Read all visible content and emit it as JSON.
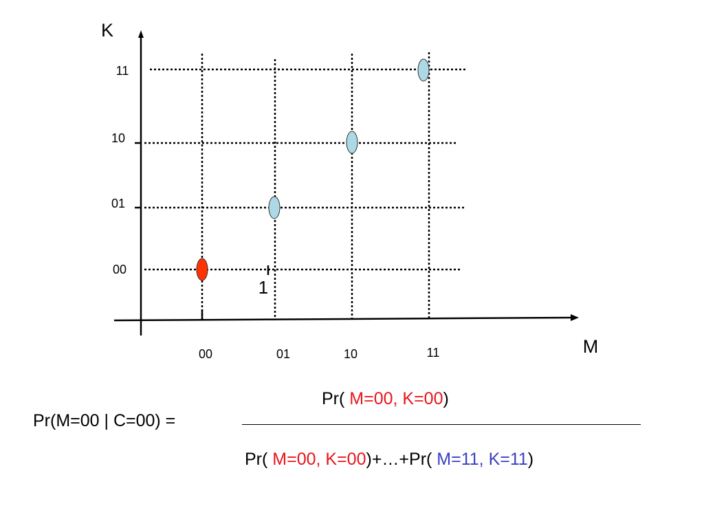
{
  "diagram": {
    "y_axis_label": "K",
    "x_axis_label": "M",
    "y_ticks": [
      "00",
      "01",
      "10",
      "11"
    ],
    "x_ticks": [
      "00",
      "01",
      "10",
      "11"
    ],
    "annotation": "1",
    "points": [
      {
        "m": "00",
        "k": "00",
        "color": "#ff3300"
      },
      {
        "m": "01",
        "k": "01",
        "color": "#add8e6"
      },
      {
        "m": "10",
        "k": "10",
        "color": "#add8e6"
      },
      {
        "m": "11",
        "k": "11",
        "color": "#add8e6"
      }
    ]
  },
  "formula": {
    "lhs": "Pr(M=00 | C=00) =",
    "numerator": {
      "prefix": "Pr( ",
      "highlight": "M=00, K=00",
      "suffix": ")"
    },
    "denominator": {
      "prefix": "Pr( ",
      "highlight_first": "M=00, K=00",
      "middle": ")+…+Pr( ",
      "highlight_last": "M=11, K=11",
      "suffix": ")"
    }
  }
}
